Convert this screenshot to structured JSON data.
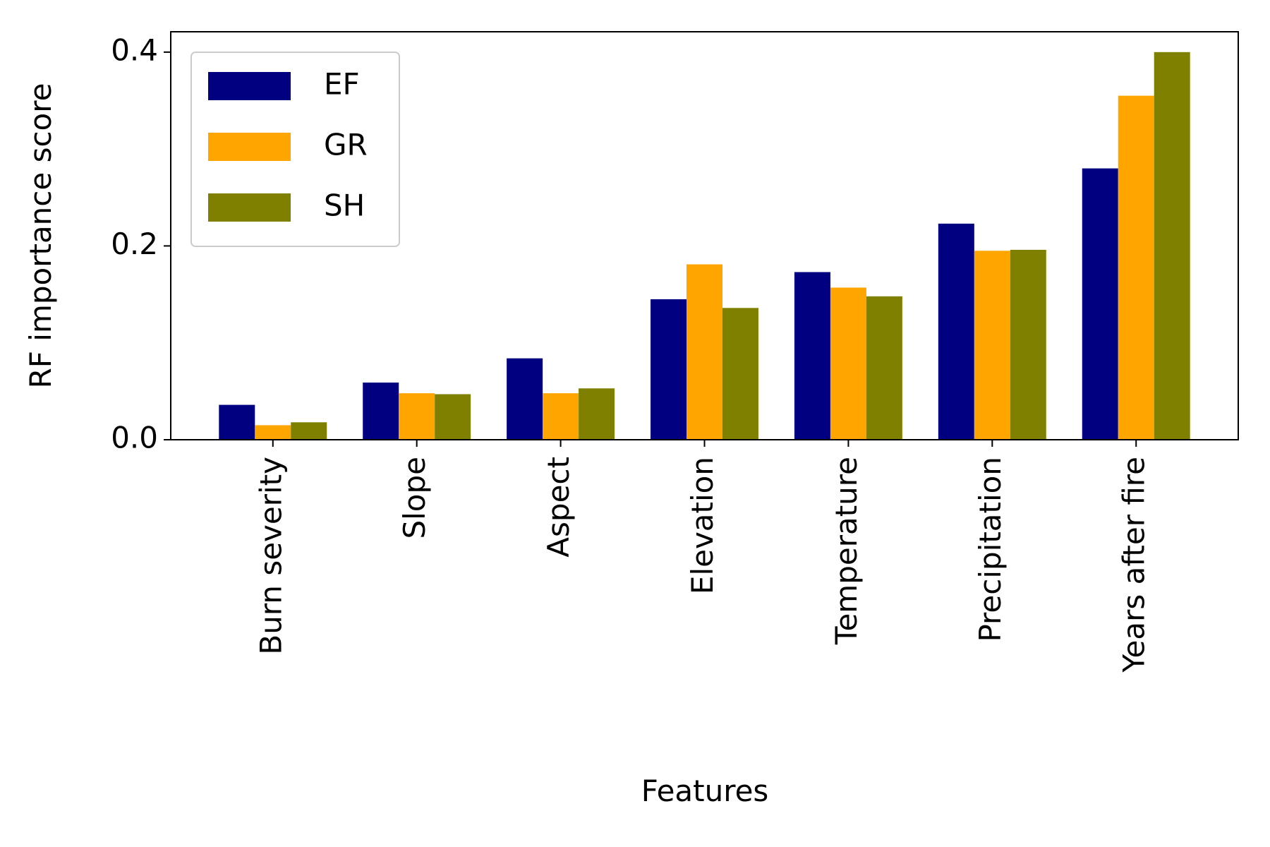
{
  "chart_data": {
    "type": "bar",
    "x_label": "Features",
    "y_label": "RF importance score",
    "categories": [
      "Burn severity",
      "Slope",
      "Aspect",
      "Elevation",
      "Temperature",
      "Precipitation",
      "Years after fire"
    ],
    "series": [
      {
        "name": "EF",
        "color": "#000080",
        "values": [
          0.036,
          0.059,
          0.084,
          0.145,
          0.173,
          0.223,
          0.28
        ]
      },
      {
        "name": "GR",
        "color": "#ffa500",
        "values": [
          0.015,
          0.048,
          0.048,
          0.181,
          0.157,
          0.195,
          0.355
        ]
      },
      {
        "name": "SH",
        "color": "#808000",
        "values": [
          0.018,
          0.047,
          0.053,
          0.136,
          0.148,
          0.196,
          0.4
        ]
      }
    ],
    "ylim": [
      0,
      0.421
    ],
    "yticks": [
      {
        "value": 0,
        "label": "0.0"
      },
      {
        "value": 0.2,
        "label": "0.2"
      },
      {
        "value": 0.4,
        "label": "0.4"
      }
    ],
    "grid": false,
    "legend": "upper left"
  }
}
